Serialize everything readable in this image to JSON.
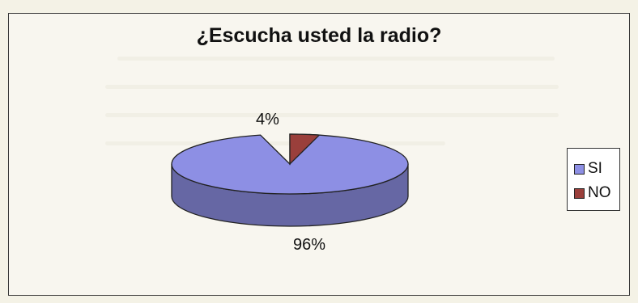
{
  "chart_data": {
    "type": "pie",
    "title": "¿Escucha usted la radio?",
    "categories": [
      "SI",
      "NO"
    ],
    "values": [
      96,
      4
    ],
    "data_labels": [
      "96%",
      "4%"
    ],
    "legend": [
      "SI",
      "NO"
    ],
    "legend_position": "right",
    "colors": [
      "#8d8fe4",
      "#9a3f3b"
    ],
    "style": "3d"
  }
}
